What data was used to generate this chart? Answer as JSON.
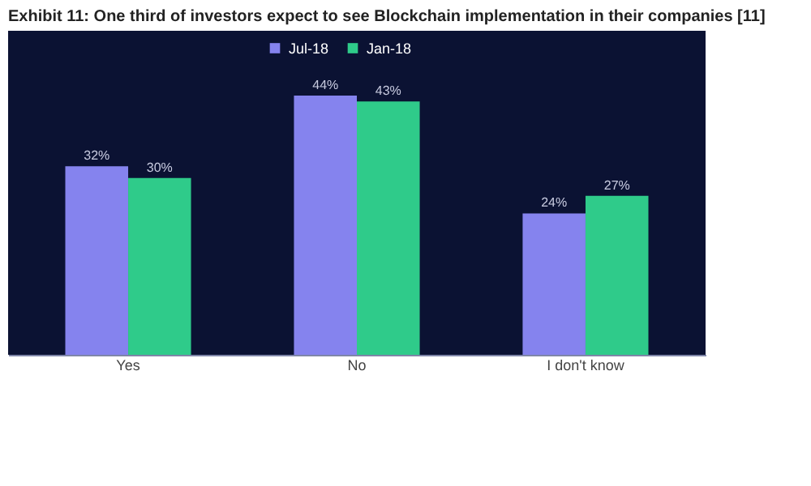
{
  "chart_data": {
    "type": "bar",
    "title": "Exhibit 11: One third of investors expect to see Blockchain implementation in their companies [11]",
    "categories": [
      "Yes",
      "No",
      "I don't know"
    ],
    "series": [
      {
        "name": "Jul-18",
        "color": "#8583ee",
        "values": [
          32,
          44,
          24
        ],
        "value_labels": [
          "32%",
          "44%",
          "24%"
        ]
      },
      {
        "name": "Jan-18",
        "color": "#2fcb8a",
        "values": [
          30,
          43,
          27
        ],
        "value_labels": [
          "30%",
          "43%",
          "27%"
        ]
      }
    ],
    "legend": "top",
    "grid": false
  }
}
